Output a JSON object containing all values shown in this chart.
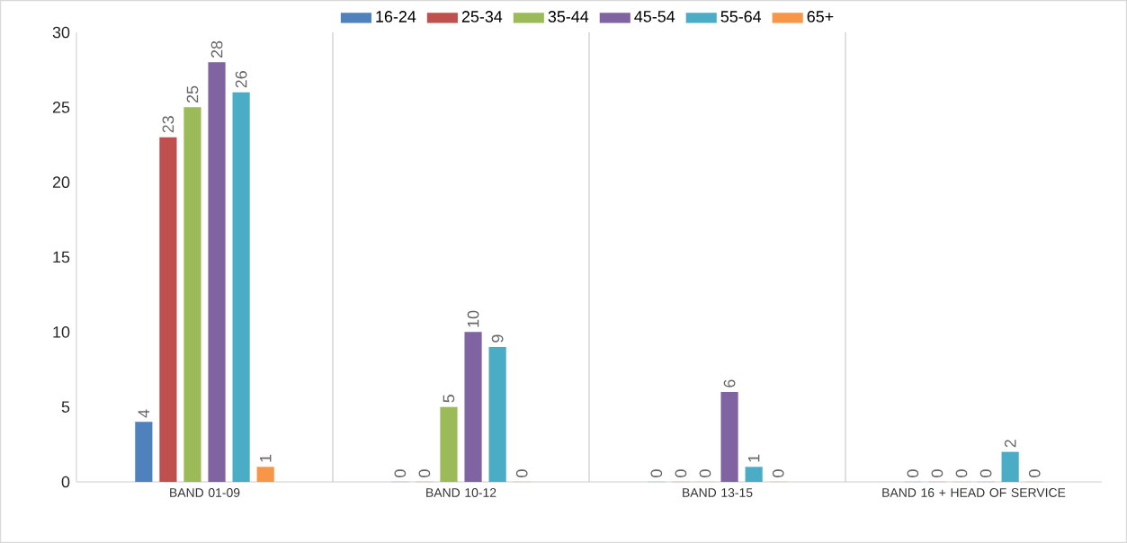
{
  "chart_data": {
    "type": "bar",
    "categories": [
      "BAND 01-09",
      "BAND 10-12",
      "BAND 13-15",
      "BAND 16 + HEAD OF SERVICE"
    ],
    "series": [
      {
        "name": "16-24",
        "color": "#4f81bd",
        "values": [
          4,
          0,
          0,
          0
        ]
      },
      {
        "name": "25-34",
        "color": "#c0504d",
        "values": [
          23,
          0,
          0,
          0
        ]
      },
      {
        "name": "35-44",
        "color": "#9bbb59",
        "values": [
          25,
          5,
          0,
          0
        ]
      },
      {
        "name": "45-54",
        "color": "#8064a2",
        "values": [
          28,
          10,
          6,
          0
        ]
      },
      {
        "name": "55-64",
        "color": "#4bacc6",
        "values": [
          26,
          9,
          1,
          2
        ]
      },
      {
        "name": "65+",
        "color": "#f79646",
        "values": [
          1,
          0,
          0,
          0
        ]
      }
    ],
    "ylim": [
      0,
      30
    ],
    "yticks": [
      0,
      5,
      10,
      15,
      20,
      25,
      30
    ],
    "grid": "x",
    "legend": "top",
    "data_labels": true
  }
}
